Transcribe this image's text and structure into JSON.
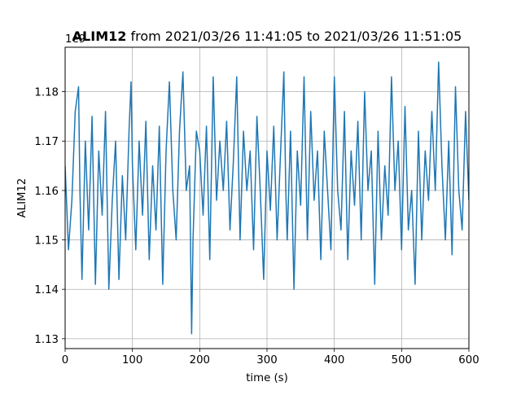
{
  "chart_data": {
    "type": "line",
    "title_bold": "ALIM12",
    "title_rest": " from 2021/03/26 11:41:05 to 2021/03/26 11:51:05",
    "xlabel": "time (s)",
    "ylabel": "ALIM12",
    "offset_text": "1e9",
    "xlim": [
      0,
      600
    ],
    "ylim": [
      1.128,
      1.189
    ],
    "xticks": [
      0,
      100,
      200,
      300,
      400,
      500,
      600
    ],
    "xtick_labels": [
      "0",
      "100",
      "200",
      "300",
      "400",
      "500",
      "600"
    ],
    "yticks": [
      1.13,
      1.14,
      1.15,
      1.16,
      1.17,
      1.18
    ],
    "ytick_labels": [
      "1.13",
      "1.14",
      "1.15",
      "1.16",
      "1.17",
      "1.18"
    ],
    "grid": true,
    "line_color": "#1f77b4",
    "series": [
      {
        "x": [
          0,
          5,
          10,
          15,
          20,
          22,
          25,
          30,
          35,
          40,
          45,
          50,
          55,
          60,
          65,
          70,
          75,
          80,
          85,
          90,
          95,
          98,
          100,
          105,
          110,
          115,
          120,
          125,
          130,
          135,
          140,
          145,
          150,
          155,
          160,
          165,
          170,
          175,
          178,
          180,
          185,
          188,
          190,
          195,
          200,
          205,
          210,
          215,
          220,
          225,
          230,
          235,
          240,
          245,
          250,
          255,
          260,
          265,
          270,
          275,
          280,
          285,
          290,
          295,
          300,
          305,
          310,
          315,
          320,
          325,
          328,
          330,
          335,
          340,
          345,
          350,
          355,
          360,
          365,
          370,
          375,
          380,
          385,
          390,
          395,
          400,
          405,
          410,
          415,
          420,
          425,
          430,
          435,
          440,
          445,
          450,
          455,
          460,
          465,
          470,
          475,
          480,
          485,
          490,
          495,
          500,
          505,
          510,
          515,
          520,
          525,
          530,
          535,
          540,
          545,
          550,
          555,
          560,
          565,
          570,
          575,
          580,
          585,
          590,
          595,
          600
        ],
        "y": [
          1.165,
          1.148,
          1.158,
          1.176,
          1.181,
          1.16,
          1.142,
          1.17,
          1.152,
          1.175,
          1.141,
          1.168,
          1.155,
          1.176,
          1.14,
          1.158,
          1.17,
          1.142,
          1.163,
          1.15,
          1.172,
          1.182,
          1.165,
          1.148,
          1.17,
          1.155,
          1.174,
          1.146,
          1.165,
          1.152,
          1.173,
          1.141,
          1.168,
          1.182,
          1.16,
          1.15,
          1.172,
          1.184,
          1.17,
          1.16,
          1.165,
          1.131,
          1.15,
          1.172,
          1.168,
          1.155,
          1.173,
          1.146,
          1.183,
          1.158,
          1.17,
          1.16,
          1.174,
          1.152,
          1.166,
          1.183,
          1.15,
          1.172,
          1.16,
          1.168,
          1.148,
          1.175,
          1.16,
          1.142,
          1.168,
          1.156,
          1.173,
          1.15,
          1.167,
          1.184,
          1.16,
          1.15,
          1.172,
          1.14,
          1.168,
          1.157,
          1.183,
          1.15,
          1.176,
          1.158,
          1.168,
          1.146,
          1.172,
          1.16,
          1.148,
          1.183,
          1.16,
          1.152,
          1.176,
          1.146,
          1.168,
          1.157,
          1.174,
          1.15,
          1.18,
          1.16,
          1.168,
          1.141,
          1.172,
          1.15,
          1.165,
          1.155,
          1.183,
          1.16,
          1.17,
          1.148,
          1.177,
          1.152,
          1.16,
          1.141,
          1.172,
          1.15,
          1.168,
          1.158,
          1.176,
          1.16,
          1.186,
          1.165,
          1.15,
          1.17,
          1.147,
          1.181,
          1.16,
          1.152,
          1.176,
          1.158
        ]
      }
    ]
  }
}
